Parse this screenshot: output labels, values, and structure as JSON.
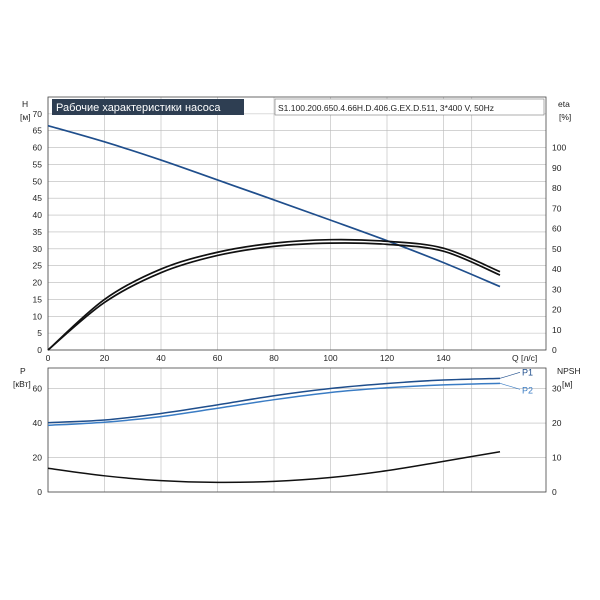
{
  "chart_data": [
    {
      "type": "line",
      "title": "Рабочие характеристики насоса",
      "subtitle": "S1.100.200.650.4.66H.D.406.G.EX.D.511, 3*400 V, 50Hz",
      "ylabel": "H",
      "yunit": "[м]",
      "y2label": "eta",
      "y2unit": "[%]",
      "xlabel": "Q [л/с]",
      "xlim": [
        0,
        160
      ],
      "ylim": [
        0,
        75
      ],
      "y2lim": [
        0,
        125
      ],
      "xticks": [
        "0",
        "20",
        "40",
        "60",
        "80",
        "100",
        "120",
        "140"
      ],
      "yticks": [
        "0",
        "5",
        "10",
        "15",
        "20",
        "25",
        "30",
        "35",
        "40",
        "45",
        "50",
        "55",
        "60",
        "65",
        "70"
      ],
      "y2ticks": [
        "0",
        "10",
        "20",
        "30",
        "40",
        "50",
        "60",
        "70",
        "80",
        "90",
        "100"
      ],
      "grid": true,
      "series": [
        {
          "color": "#1f4e8c",
          "axis": "left",
          "x": [
            0,
            20,
            40,
            60,
            80,
            100,
            120,
            140,
            160
          ],
          "y": [
            66.5,
            61.7,
            56.3,
            50.4,
            44.5,
            38.5,
            32.4,
            25.9,
            18.8
          ]
        },
        {
          "color": "#111111",
          "axis": "right",
          "x": [
            0,
            20,
            40,
            60,
            80,
            100,
            120,
            140,
            160
          ],
          "y": [
            0,
            25,
            40,
            48.3,
            52.8,
            54.5,
            53.7,
            50.3,
            38.7
          ]
        },
        {
          "color": "#111111",
          "axis": "right",
          "x": [
            0,
            20,
            40,
            60,
            80,
            100,
            120,
            140,
            160
          ],
          "y": [
            0,
            23.5,
            38.2,
            46.7,
            51.2,
            52.8,
            52.2,
            48.8,
            37.0
          ]
        }
      ]
    },
    {
      "type": "line",
      "ylabel": "P",
      "yunit": "[кВт]",
      "y2label": "NPSH",
      "y2unit": "[м]",
      "xlim": [
        0,
        160
      ],
      "ylim": [
        0,
        72
      ],
      "y2lim": [
        0,
        36
      ],
      "yticks": [
        "0",
        "20",
        "40",
        "60"
      ],
      "y2ticks": [
        "0",
        "10",
        "20",
        "30"
      ],
      "grid": true,
      "series": [
        {
          "name": "P1",
          "color": "#1f4e8c",
          "axis": "left",
          "x": [
            0,
            20,
            40,
            60,
            80,
            100,
            120,
            140,
            160
          ],
          "y": [
            40.3,
            41.8,
            45.6,
            50.6,
            55.9,
            60.1,
            63.0,
            65.0,
            66.0
          ]
        },
        {
          "name": "P2",
          "color": "#3a7cc4",
          "axis": "left",
          "x": [
            0,
            20,
            40,
            60,
            80,
            100,
            120,
            140,
            160
          ],
          "y": [
            38.7,
            40.5,
            43.8,
            48.6,
            53.6,
            57.8,
            60.5,
            62.2,
            63.1
          ]
        },
        {
          "color": "#111111",
          "axis": "right",
          "x": [
            0,
            20,
            40,
            60,
            80,
            100,
            120,
            140,
            160
          ],
          "y": [
            6.9,
            4.7,
            3.3,
            2.8,
            3.1,
            4.2,
            6.2,
            8.9,
            11.7
          ]
        }
      ]
    }
  ]
}
